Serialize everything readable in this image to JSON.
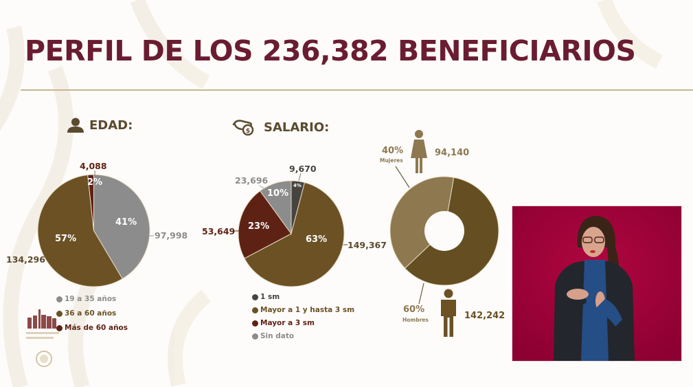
{
  "title": "PERFIL DE LOS 236,382 BENEFICIARIOS",
  "colors": {
    "title": "#691c32",
    "divider": "#c9b48f",
    "brown": "#6b5124",
    "gray": "#8c8c8c",
    "maroon": "#5e2214",
    "dark_gray": "#474440",
    "light_brown": "#8d7850",
    "dark_brown": "#654f22"
  },
  "sections": {
    "edad": {
      "heading": "EDAD:",
      "icon": "person-icon"
    },
    "salario": {
      "heading": "SALARIO:",
      "icon": "hand-coin-icon"
    },
    "genero": {
      "icon_women": "woman-icon",
      "icon_men": "man-icon"
    }
  },
  "chart_data": [
    {
      "type": "pie",
      "title": "EDAD:",
      "categories": [
        "19 a 35 años",
        "36 a 60 años",
        "Más de 60 años"
      ],
      "values": [
        97998,
        134296,
        4088
      ],
      "percentages": [
        "41%",
        "57%",
        "2%"
      ],
      "value_labels": [
        "97,998",
        "134,296",
        "4,088"
      ],
      "colors": [
        "#8c8c8c",
        "#6b5124",
        "#5e2214"
      ],
      "legend_position": "bottom"
    },
    {
      "type": "pie",
      "title": "SALARIO:",
      "categories": [
        "1 sm",
        "Mayor a 1 y hasta 3 sm",
        "Mayor a 3 sm",
        "Sin dato"
      ],
      "values": [
        9670,
        149367,
        53649,
        23696
      ],
      "percentages": [
        "4%",
        "63%",
        "23%",
        "10%"
      ],
      "value_labels": [
        "9,670",
        "149,367",
        "53,649",
        "23,696"
      ],
      "colors": [
        "#474440",
        "#6b5124",
        "#5e2214",
        "#8c8c8c"
      ],
      "legend_position": "bottom"
    },
    {
      "type": "pie",
      "subtype": "donut",
      "title": "",
      "categories": [
        "Mujeres",
        "Hombres"
      ],
      "values": [
        94140,
        142242
      ],
      "percentages": [
        "40%",
        "60%"
      ],
      "value_labels": [
        "94,140",
        "142,242"
      ],
      "colors": [
        "#8d7850",
        "#654f22"
      ]
    }
  ],
  "edad": {
    "labels": {
      "top": "4,088",
      "right": "97,998",
      "left": "134,296"
    },
    "pcts": {
      "a": "41%",
      "b": "57%",
      "c": "2%"
    },
    "legend": [
      "19 a 35 años",
      "36 a 60 años",
      "Más de 60 años"
    ]
  },
  "salario": {
    "labels": {
      "top": "9,670",
      "topleft": "23,696",
      "left": "53,649",
      "right": "149,367"
    },
    "pcts": {
      "a": "4%",
      "b": "10%",
      "c": "23%",
      "d": "63%"
    },
    "legend": [
      "1 sm",
      "Mayor a 1 y hasta 3 sm",
      "Mayor a 3 sm",
      "Sin dato"
    ]
  },
  "genero": {
    "mujeres_pct": "40%",
    "mujeres_label": "Mujeres",
    "mujeres_value": "94,140",
    "hombres_pct": "60%",
    "hombres_label": "Hombres",
    "hombres_value": "142,242"
  },
  "video": {
    "description": "Sign language interpreter"
  }
}
